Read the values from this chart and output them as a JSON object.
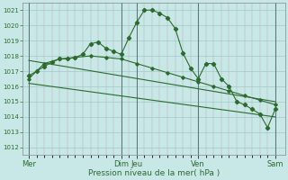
{
  "background_color": "#c8e8e8",
  "grid_color_major": "#a0c8c8",
  "grid_color_minor": "#c0a0a0",
  "line_color": "#2d6a2d",
  "ylim": [
    1011.5,
    1021.5
  ],
  "yticks": [
    1012,
    1013,
    1014,
    1015,
    1016,
    1017,
    1018,
    1019,
    1020,
    1021
  ],
  "xlabel": "Pression niveau de la mer( hPa )",
  "day_positions": [
    0,
    72,
    84,
    132,
    192
  ],
  "day_labels": [
    "Mer",
    "Dim",
    "Jeu",
    "Ven",
    "Sam"
  ],
  "xlim": [
    -5,
    200
  ],
  "line1_x": [
    0,
    6,
    12,
    18,
    24,
    30,
    36,
    42,
    48,
    54,
    60,
    66,
    72,
    78,
    84,
    90,
    96,
    102,
    108,
    114,
    120,
    126,
    132,
    138,
    144,
    150,
    156,
    162,
    168,
    174,
    180,
    186,
    192
  ],
  "line1_y": [
    1016.7,
    1017.0,
    1017.3,
    1017.6,
    1017.8,
    1017.8,
    1017.9,
    1018.1,
    1018.8,
    1018.9,
    1018.5,
    1018.3,
    1018.1,
    1019.2,
    1020.2,
    1021.0,
    1021.0,
    1020.8,
    1020.5,
    1019.8,
    1018.2,
    1017.2,
    1016.5,
    1017.5,
    1017.5,
    1016.5,
    1016.0,
    1015.0,
    1014.8,
    1014.5,
    1014.2,
    1013.3,
    1014.5
  ],
  "line2_x": [
    0,
    12,
    24,
    36,
    48,
    60,
    72,
    84,
    96,
    108,
    120,
    132,
    144,
    156,
    168,
    180,
    192
  ],
  "line2_y": [
    1016.5,
    1017.5,
    1017.8,
    1017.9,
    1018.0,
    1017.9,
    1017.8,
    1017.5,
    1017.2,
    1016.9,
    1016.6,
    1016.3,
    1016.0,
    1015.7,
    1015.4,
    1015.1,
    1014.8
  ],
  "line3": [
    [
      0,
      1016.2
    ],
    [
      192,
      1014.0
    ]
  ],
  "line4": [
    [
      0,
      1017.7
    ],
    [
      192,
      1015.0
    ]
  ]
}
